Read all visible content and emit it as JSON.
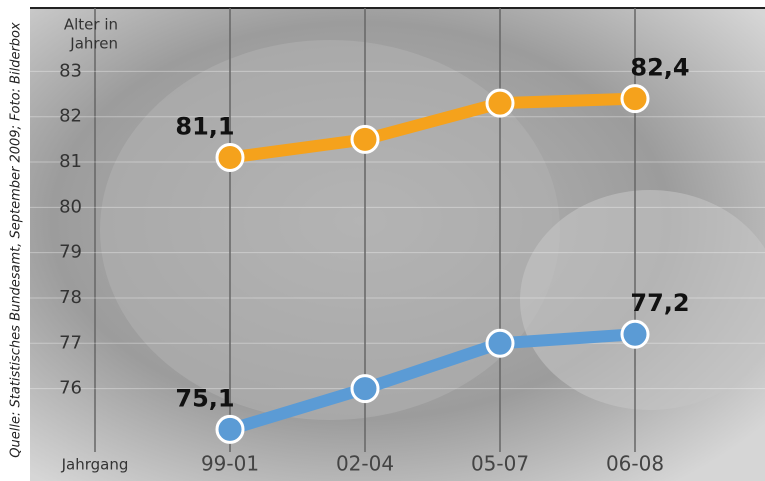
{
  "chart_data": {
    "type": "line",
    "y_label": [
      "Alter in",
      "Jahren"
    ],
    "x_label": "Jahrgang",
    "source": "Quelle: Statistisches Bundesamt, September 2009; Foto: Bilderbox",
    "categories": [
      "99-01",
      "02-04",
      "05-07",
      "06-08"
    ],
    "series": [
      {
        "color": "#f5a21c",
        "values": [
          81.1,
          81.5,
          82.3,
          82.4
        ],
        "value_labels": [
          "81,1",
          null,
          null,
          "82,4"
        ]
      },
      {
        "color": "#5b9bd5",
        "values": [
          75.1,
          76.0,
          77.0,
          77.2
        ],
        "value_labels": [
          "75,1",
          null,
          null,
          "77,2"
        ]
      }
    ],
    "ylim": [
      74.6,
      84.4
    ],
    "yticks": [
      76,
      77,
      78,
      79,
      80,
      81,
      82,
      83
    ],
    "grid": true
  }
}
